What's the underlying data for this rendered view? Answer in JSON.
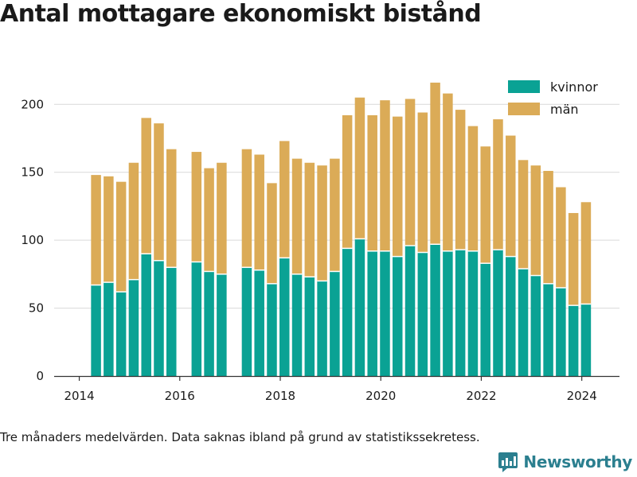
{
  "title": "Antal mottagare ekonomiskt bistånd",
  "footnote": "Tre månaders medelvärden. Data saknas ibland på grund av statistikssekretess.",
  "brand": {
    "name": "Newsworthy",
    "icon": "newsworthy-logo-icon"
  },
  "colors": {
    "kvinnor": "#0aa294",
    "man": "#dbab57",
    "grid": "#d9d9d9",
    "text": "#1a1a1a"
  },
  "chart_data": {
    "type": "bar",
    "stacked": true,
    "title": "Antal mottagare ekonomiskt bistånd",
    "xlabel": "",
    "ylabel": "",
    "xlim": [
      2013.5,
      2024.75
    ],
    "ylim": [
      0,
      230
    ],
    "x_ticks": [
      2014,
      2016,
      2018,
      2020,
      2022,
      2024
    ],
    "y_ticks": [
      0,
      50,
      100,
      150,
      200
    ],
    "grid": true,
    "legend_position": "top-right",
    "x": [
      "2014-05",
      "2014-08",
      "2014-11",
      "2015-02",
      "2015-05",
      "2015-08",
      "2015-11",
      "2016-05",
      "2016-08",
      "2016-11",
      "2017-05",
      "2017-08",
      "2017-11",
      "2018-02",
      "2018-05",
      "2018-08",
      "2018-11",
      "2019-02",
      "2019-05",
      "2019-08",
      "2019-11",
      "2020-02",
      "2020-05",
      "2020-08",
      "2020-11",
      "2021-02",
      "2021-05",
      "2021-08",
      "2021-11",
      "2022-02",
      "2022-05",
      "2022-08",
      "2022-11",
      "2023-02",
      "2023-05",
      "2023-08",
      "2023-11",
      "2024-02"
    ],
    "series": [
      {
        "name": "kvinnor",
        "values": [
          67,
          69,
          62,
          71,
          90,
          85,
          80,
          84,
          77,
          75,
          80,
          78,
          68,
          87,
          75,
          73,
          70,
          77,
          94,
          101,
          92,
          92,
          88,
          96,
          91,
          97,
          92,
          93,
          92,
          83,
          93,
          88,
          79,
          74,
          68,
          65,
          52,
          53
        ]
      },
      {
        "name": "män",
        "values": [
          81,
          78,
          81,
          86,
          100,
          101,
          87,
          81,
          76,
          82,
          87,
          85,
          74,
          86,
          85,
          84,
          85,
          83,
          98,
          104,
          100,
          111,
          103,
          108,
          103,
          119,
          116,
          103,
          92,
          86,
          96,
          89,
          80,
          81,
          83,
          74,
          68,
          75
        ]
      }
    ]
  }
}
